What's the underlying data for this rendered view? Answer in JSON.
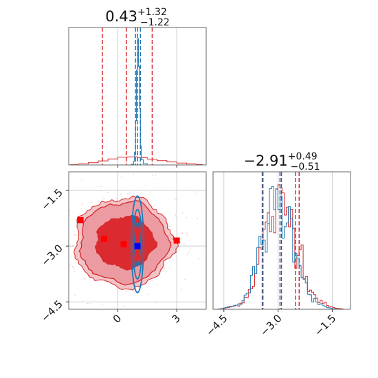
{
  "chart_data": [
    {
      "type": "histogram",
      "panel": "marginal-param-1",
      "title": {
        "value": "0.43",
        "plus": "+1.32",
        "minus": "−1.22"
      },
      "xlim": [
        -2.5,
        4.5
      ],
      "xticks": [
        0,
        3
      ],
      "grid": true,
      "series": [
        {
          "color": "#d62728",
          "quantiles": [
            -0.79,
            0.43,
            1.75
          ],
          "x": [
            -2.4,
            -2.0,
            -1.5,
            -1.0,
            -0.5,
            0.0,
            0.5,
            1.0,
            1.5,
            2.0,
            2.5,
            3.0,
            3.5,
            4.0,
            4.3
          ],
          "density": [
            0.2,
            0.8,
            1.8,
            3.2,
            4.8,
            6.2,
            6.4,
            5.8,
            4.6,
            3.4,
            2.4,
            1.5,
            0.8,
            0.3,
            0.1
          ]
        },
        {
          "color": "#1f77b4",
          "quantiles": [
            0.9,
            1.0,
            1.15
          ],
          "x": [
            0.5,
            0.7,
            0.8,
            0.85,
            0.9,
            0.95,
            1.0,
            1.05,
            1.1,
            1.15,
            1.2,
            1.3,
            1.5
          ],
          "density": [
            0,
            0.5,
            3,
            10,
            35,
            75,
            100,
            78,
            45,
            15,
            4,
            1,
            0
          ]
        }
      ]
    },
    {
      "type": "histogram",
      "panel": "marginal-param-2",
      "title": {
        "value": "−2.91",
        "plus": "+0.49",
        "minus": "−0.51"
      },
      "xlim": [
        -4.8,
        -1.0
      ],
      "xticks": [
        -4.5,
        -3.0,
        -1.5
      ],
      "xtick_labels": [
        "−4.5",
        "−3.0",
        "−1.5"
      ],
      "grid": true,
      "series": [
        {
          "color": "#d62728",
          "quantiles": [
            -3.42,
            -2.91,
            -2.42
          ],
          "x": [
            -4.7,
            -4.5,
            -4.2,
            -4.0,
            -3.8,
            -3.6,
            -3.4,
            -3.2,
            -3.0,
            -2.8,
            -2.6,
            -2.4,
            -2.2,
            -2.0,
            -1.8,
            -1.6,
            -1.4,
            -1.2
          ],
          "density": [
            0,
            1,
            3,
            7,
            18,
            38,
            66,
            82,
            90,
            88,
            76,
            52,
            24,
            11,
            6,
            2,
            1,
            0
          ]
        },
        {
          "color": "#1f77b4",
          "quantiles": [
            -3.44,
            -2.95,
            -2.52
          ],
          "x": [
            -4.7,
            -4.5,
            -4.2,
            -4.0,
            -3.8,
            -3.6,
            -3.4,
            -3.2,
            -3.0,
            -2.8,
            -2.6,
            -2.4,
            -2.2,
            -2.0,
            -1.8,
            -1.6,
            -1.4,
            -1.2
          ],
          "density": [
            0,
            1,
            4,
            8,
            20,
            42,
            70,
            86,
            92,
            84,
            66,
            40,
            16,
            7,
            3,
            1,
            0,
            0
          ]
        }
      ]
    },
    {
      "type": "contour",
      "panel": "joint-param-1-vs-param-2",
      "xlim": [
        -2.5,
        4.5
      ],
      "ylim": [
        -4.7,
        -1.0
      ],
      "xticks": [
        0,
        3
      ],
      "yticks": [
        -1.5,
        -3.0,
        -4.5
      ],
      "ytick_labels": [
        "−1.5",
        "−3.0",
        "−4.5"
      ],
      "grid": true,
      "series": [
        {
          "color": "#d62728",
          "center": [
            0.3,
            -2.9
          ],
          "spread": [
            2.4,
            1.2
          ]
        },
        {
          "color": "#1f77b4",
          "center": [
            1.0,
            -2.95
          ],
          "spread": [
            0.12,
            1.3
          ]
        }
      ],
      "markers": [
        {
          "color": "#ff0000",
          "x": -1.9,
          "y": -2.3
        },
        {
          "color": "#ff0000",
          "x": -0.7,
          "y": -2.8
        },
        {
          "color": "#ff0000",
          "x": 0.3,
          "y": -2.95
        },
        {
          "color": "#ff0000",
          "x": 3.0,
          "y": -2.85
        },
        {
          "color": "#0000ff",
          "x": 1.0,
          "y": -3.0
        }
      ]
    }
  ]
}
